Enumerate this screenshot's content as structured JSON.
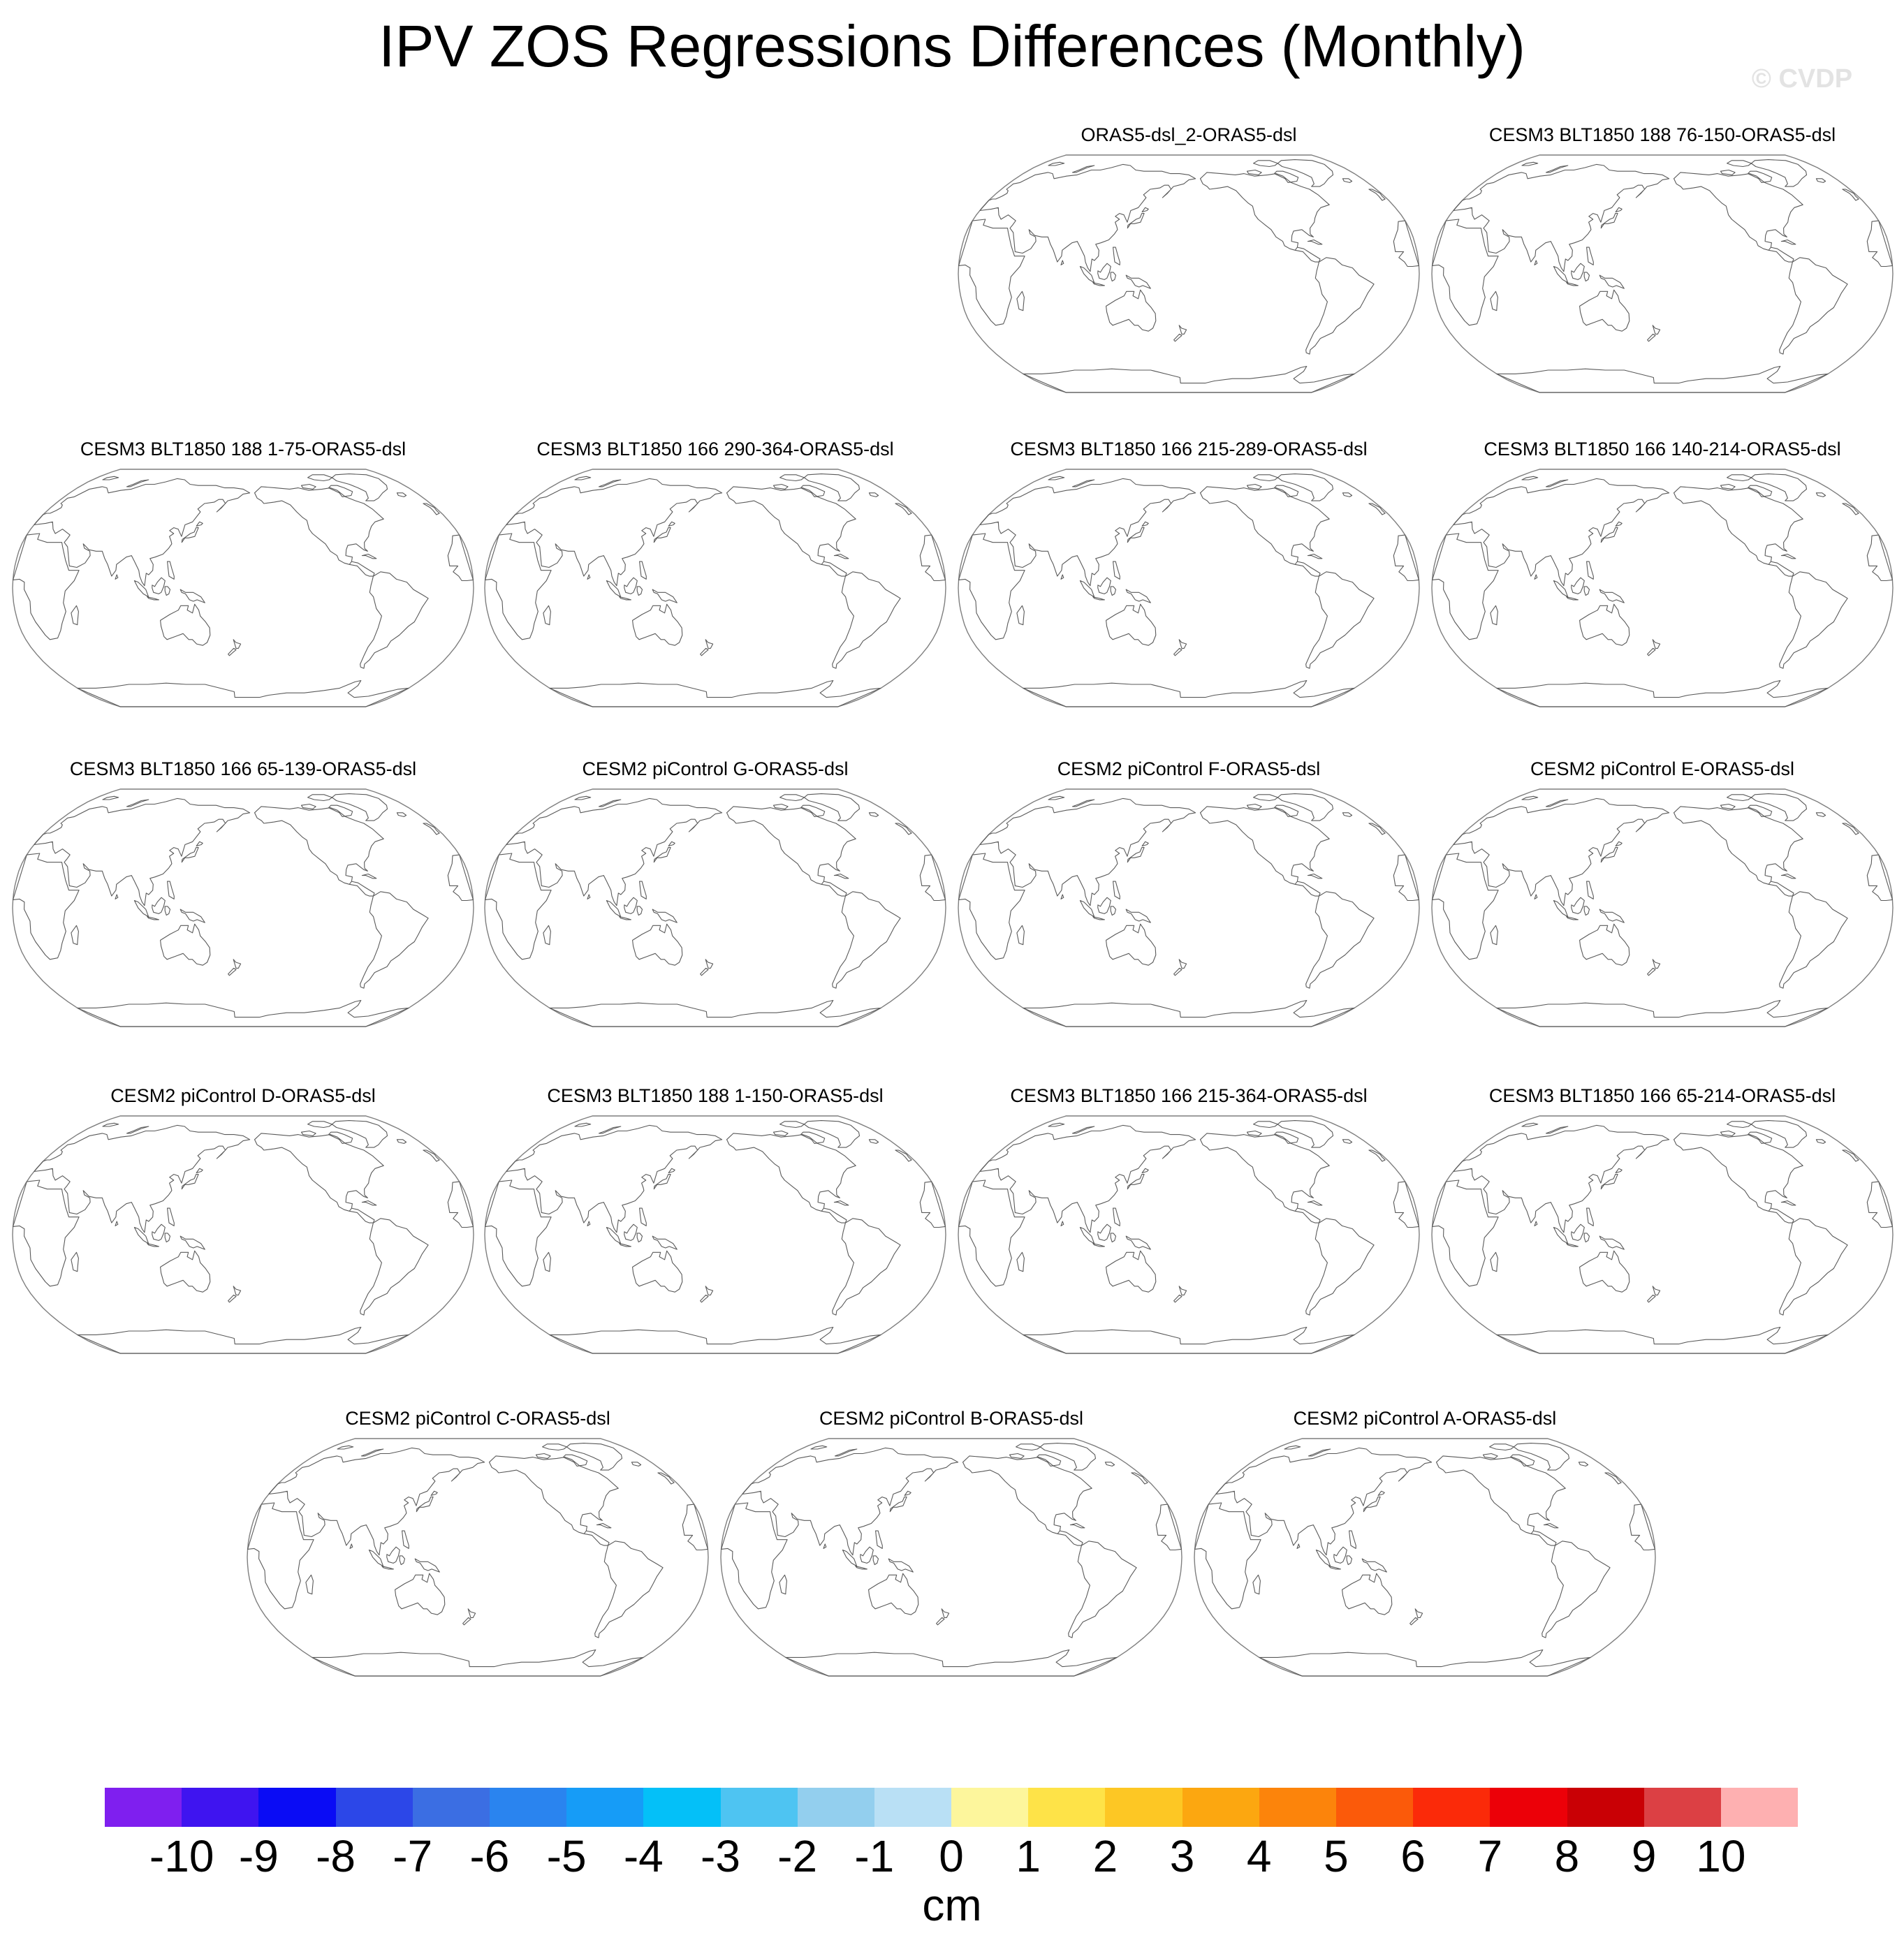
{
  "page": {
    "title": "IPV ZOS Regressions Differences (Monthly)",
    "watermark": "© CVDP"
  },
  "chart_data": {
    "type": "map-panels",
    "title": "IPV ZOS Regressions Differences (Monthly)",
    "projection": "robinson",
    "panels": [
      {
        "title": "ORAS5-dsl_2-ORAS5-dsl"
      },
      {
        "title": "CESM3 BLT1850 188 76-150-ORAS5-dsl"
      },
      {
        "title": "CESM3 BLT1850 188 1-75-ORAS5-dsl"
      },
      {
        "title": "CESM3 BLT1850 166 290-364-ORAS5-dsl"
      },
      {
        "title": "CESM3 BLT1850 166 215-289-ORAS5-dsl"
      },
      {
        "title": "CESM3 BLT1850 166 140-214-ORAS5-dsl"
      },
      {
        "title": "CESM3 BLT1850 166 65-139-ORAS5-dsl"
      },
      {
        "title": "CESM2 piControl G-ORAS5-dsl"
      },
      {
        "title": "CESM2 piControl F-ORAS5-dsl"
      },
      {
        "title": "CESM2 piControl E-ORAS5-dsl"
      },
      {
        "title": "CESM2 piControl D-ORAS5-dsl"
      },
      {
        "title": "CESM3 BLT1850 188 1-150-ORAS5-dsl"
      },
      {
        "title": "CESM3 BLT1850 166 215-364-ORAS5-dsl"
      },
      {
        "title": "CESM3 BLT1850 166 65-214-ORAS5-dsl"
      },
      {
        "title": "CESM2 piControl C-ORAS5-dsl"
      },
      {
        "title": "CESM2 piControl B-ORAS5-dsl"
      },
      {
        "title": "CESM2 piControl A-ORAS5-dsl"
      }
    ],
    "colorbar": {
      "units": "cm",
      "ticks": [
        "-10",
        "-9",
        "-8",
        "-7",
        "-6",
        "-5",
        "-4",
        "-3",
        "-2",
        "-1",
        "0",
        "1",
        "2",
        "3",
        "4",
        "5",
        "6",
        "7",
        "8",
        "9",
        "10"
      ],
      "colors": [
        "#7f1fef",
        "#3f14f0",
        "#0a0cf5",
        "#2c47e8",
        "#3b6ee3",
        "#2a84ef",
        "#169cf7",
        "#04c0f8",
        "#4ec4f2",
        "#93cfee",
        "#b9e0f5",
        "#fdf69c",
        "#fee348",
        "#fdc724",
        "#fca710",
        "#fc840b",
        "#fb5a0a",
        "#fb2a09",
        "#ec0008",
        "#c90005",
        "#dc4044",
        "#feb0b1"
      ]
    }
  }
}
